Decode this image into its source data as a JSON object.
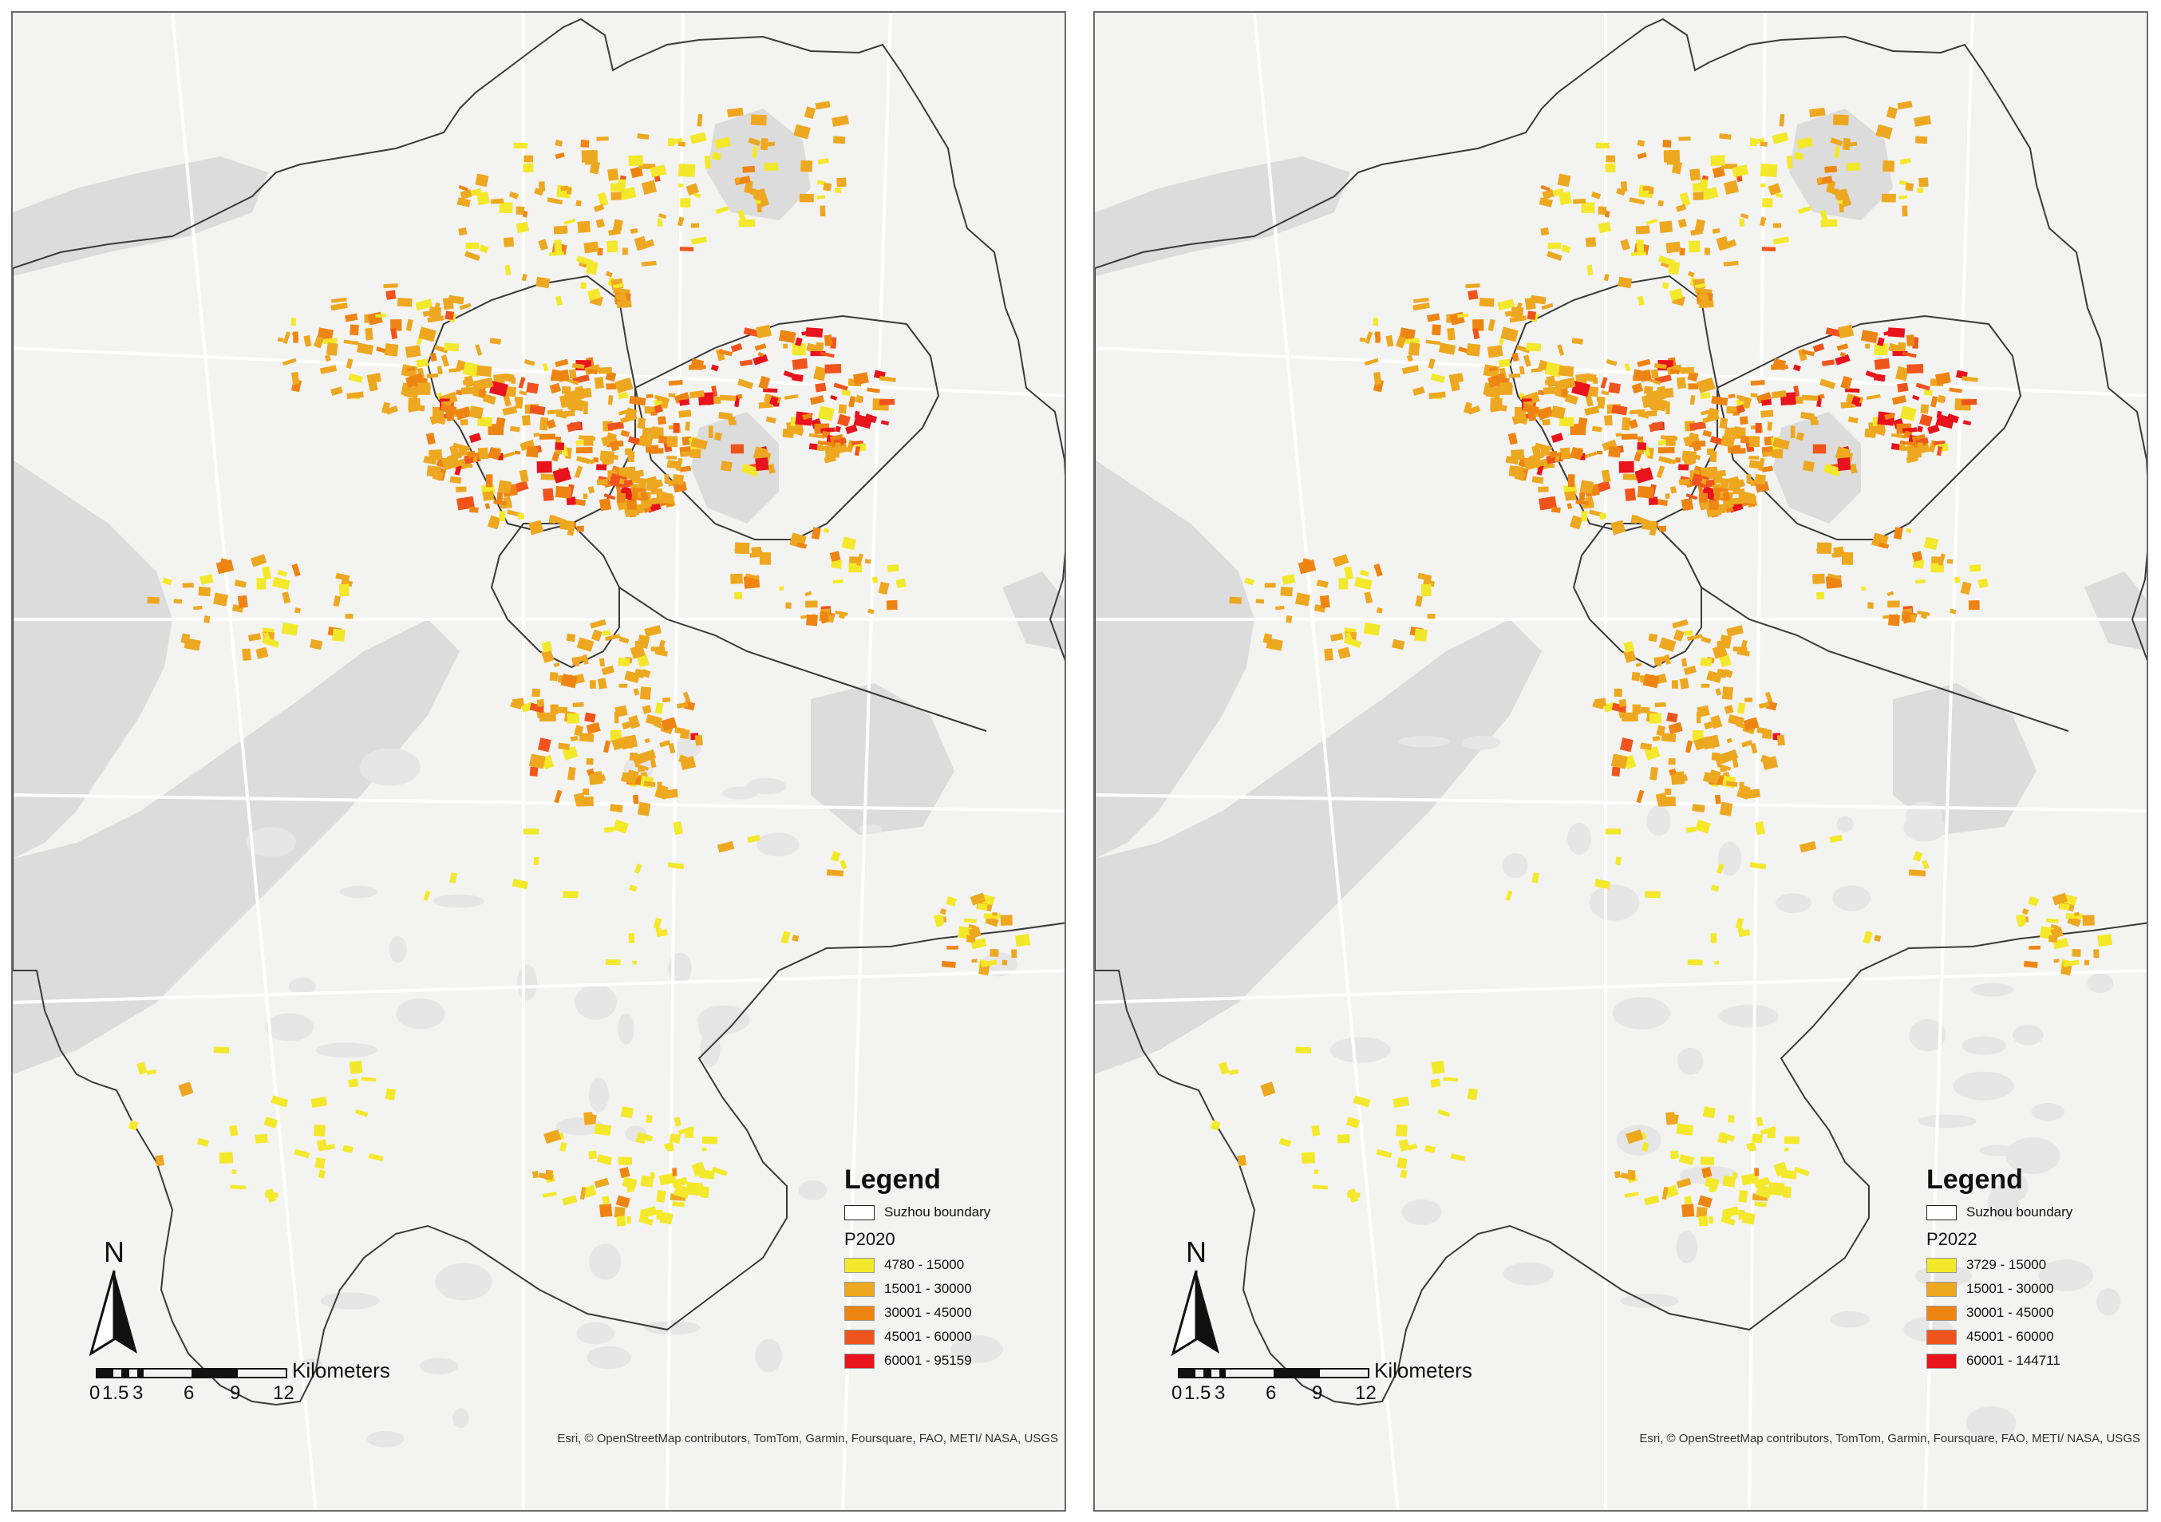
{
  "panels": [
    {
      "id": "left",
      "legend": {
        "title": "Legend",
        "boundary_label": "Suzhou  boundary",
        "field": "P2020",
        "classes": [
          {
            "label": "4780 - 15000",
            "color": "#f4e82a"
          },
          {
            "label": "15001 - 30000",
            "color": "#eda820"
          },
          {
            "label": "30001 - 45000",
            "color": "#ee8513"
          },
          {
            "label": "45001 - 60000",
            "color": "#f0541c"
          },
          {
            "label": "60001 - 95159",
            "color": "#e8131c"
          }
        ]
      },
      "north_label": "N",
      "scale": {
        "unit": "Kilometers",
        "ticks": [
          "0",
          "1.5",
          "3",
          "6",
          "9",
          "12"
        ]
      },
      "credit": "Esri, © OpenStreetMap contributors, TomTom, Garmin, Foursquare, FAO, METI/ NASA, USGS"
    },
    {
      "id": "right",
      "legend": {
        "title": "Legend",
        "boundary_label": "Suzhou  boundary",
        "field": "P2022",
        "classes": [
          {
            "label": "3729 - 15000",
            "color": "#f4e82a"
          },
          {
            "label": "15001 - 30000",
            "color": "#eda820"
          },
          {
            "label": "30001 - 45000",
            "color": "#ee8513"
          },
          {
            "label": "45001 - 60000",
            "color": "#f0541c"
          },
          {
            "label": "60001 - 144711",
            "color": "#e8131c"
          }
        ]
      },
      "north_label": "N",
      "scale": {
        "unit": "Kilometers",
        "ticks": [
          "0",
          "1.5",
          "3",
          "6",
          "9",
          "12"
        ]
      },
      "credit": "Esri, © OpenStreetMap contributors, TomTom, Garmin, Foursquare, FAO, METI/ NASA, USGS"
    }
  ],
  "colors": {
    "basemap": "#f3f3f2",
    "water": "#dcdcdc",
    "green": "#e6e6e6",
    "road": "#ffffff",
    "boundary": "#3a3a3a"
  }
}
